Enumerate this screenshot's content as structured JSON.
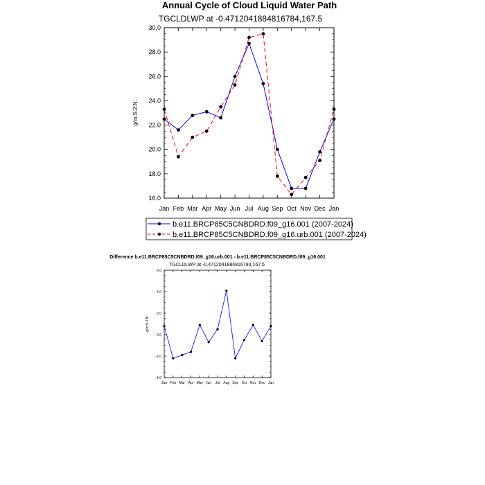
{
  "chart_data": [
    {
      "type": "line",
      "title": "Annual Cycle of Cloud Liquid Water Path",
      "subtitle": "TGCLDLWP at -0.4712041884816784,167.5",
      "ylabel": "g/m:S:2:N:",
      "categories": [
        "Jan",
        "Feb",
        "Mar",
        "Apr",
        "May",
        "Jun",
        "Jul",
        "Aug",
        "Sep",
        "Oct",
        "Nov",
        "Dec",
        "Jan"
      ],
      "ylim": [
        16.0,
        30.0
      ],
      "yticks": [
        "16.0",
        "18.0",
        "20.0",
        "22.0",
        "24.0",
        "26.0",
        "28.0",
        "30.0"
      ],
      "series": [
        {
          "name": "b.e11.BRCP85C5CNBDRD.f09_g16.001 (2007-2024)",
          "values": [
            22.5,
            21.6,
            22.8,
            23.1,
            22.6,
            26.0,
            28.7,
            25.4,
            20.0,
            16.8,
            16.8,
            19.8,
            22.5
          ],
          "color": "#0000ff",
          "dash": "solid"
        },
        {
          "name": "b.e11.BRCP85C5CNBDRD.f09_g16.urb.001 (2007-2024)",
          "values": [
            23.3,
            19.4,
            21.0,
            21.5,
            23.5,
            25.3,
            29.2,
            29.5,
            17.8,
            16.3,
            17.7,
            19.1,
            23.3
          ],
          "color": "#ff0000",
          "dash": "dashed"
        }
      ],
      "legend_position": "bottom"
    },
    {
      "type": "line",
      "title": "Difference b.e11.BRCP85C5CNBDRD.f09_g16.urb.001 - b.e11.BRCP85C5CNBDRD.f09_g16.001",
      "subtitle": "TGCLDLWP at -0.4712041884816784,167.5",
      "ylabel": "g/m:S:2:N:",
      "categories": [
        "Jan",
        "Feb",
        "Mar",
        "Apr",
        "May",
        "Jun",
        "Jul",
        "Aug",
        "Sep",
        "Oct",
        "Nov",
        "Dec",
        "Jan"
      ],
      "ylim": [
        -4.0,
        6.0
      ],
      "yticks": [
        "-4.0",
        "-2.0",
        "0.0",
        "2.0",
        "4.0",
        "6.0"
      ],
      "series": [
        {
          "values": [
            0.8,
            -2.2,
            -1.9,
            -1.6,
            0.9,
            -0.7,
            0.5,
            4.1,
            -2.2,
            -0.5,
            0.9,
            -0.6,
            0.8
          ],
          "color": "#0000ff",
          "dash": "solid"
        }
      ]
    }
  ]
}
